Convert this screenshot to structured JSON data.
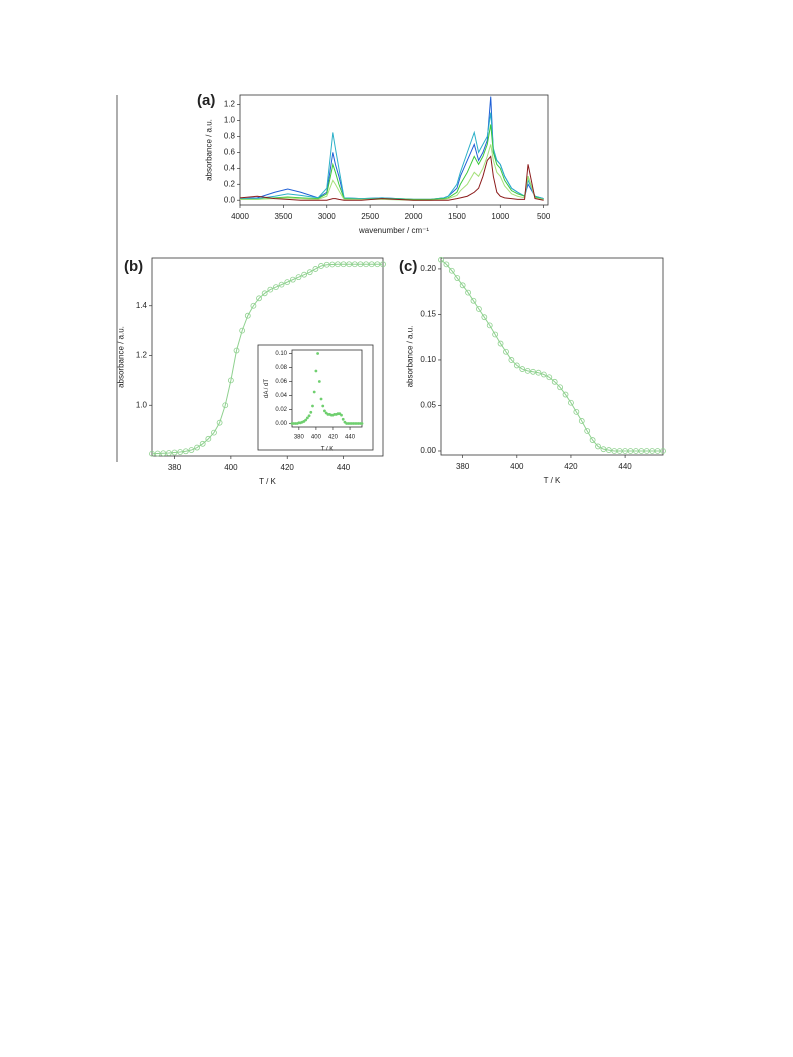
{
  "chart_data": [
    {
      "type": "line",
      "panel_label": "(a)",
      "xlabel": "wavenumber / cm⁻¹",
      "ylabel": "absorbance / a.u.",
      "xlim": [
        4000,
        450
      ],
      "ylim": [
        -0.06,
        1.32
      ],
      "xticks": [
        4000,
        3500,
        3000,
        2500,
        2000,
        1500,
        1000,
        500
      ],
      "yticks": [
        {
          "value": 0,
          "label": "0.0"
        },
        0.2,
        0.4,
        0.6,
        0.8,
        {
          "value": 1,
          "label": "1.0"
        },
        1.2
      ],
      "x": [
        4000,
        3800,
        3600,
        3450,
        3300,
        3100,
        3000,
        2930,
        2900,
        2860,
        2800,
        2600,
        2360,
        2000,
        1800,
        1650,
        1600,
        1500,
        1460,
        1380,
        1300,
        1250,
        1200,
        1150,
        1110,
        1080,
        1040,
        1000,
        950,
        870,
        800,
        720,
        680,
        600,
        500
      ],
      "series": [
        {
          "color": "#1f5fd6",
          "values": [
            0.02,
            0.03,
            0.1,
            0.14,
            0.1,
            0.03,
            0.1,
            0.6,
            0.45,
            0.3,
            0.03,
            0.02,
            0.03,
            0.01,
            0.01,
            0.03,
            0.05,
            0.15,
            0.3,
            0.5,
            0.7,
            0.5,
            0.6,
            0.75,
            1.3,
            0.6,
            0.5,
            0.45,
            0.3,
            0.15,
            0.1,
            0.05,
            0.2,
            0.05,
            0.02
          ]
        },
        {
          "color": "#2bb0c8",
          "values": [
            0.02,
            0.02,
            0.05,
            0.08,
            0.06,
            0.03,
            0.15,
            0.85,
            0.65,
            0.4,
            0.03,
            0.02,
            0.03,
            0.01,
            0.01,
            0.03,
            0.05,
            0.2,
            0.35,
            0.6,
            0.85,
            0.6,
            0.7,
            0.8,
            1.1,
            0.65,
            0.5,
            0.45,
            0.3,
            0.15,
            0.1,
            0.05,
            0.25,
            0.05,
            0.02
          ]
        },
        {
          "color": "#3cc83c",
          "values": [
            0.01,
            0.01,
            0.03,
            0.04,
            0.03,
            0.02,
            0.08,
            0.45,
            0.35,
            0.2,
            0.02,
            0.01,
            0.02,
            0.01,
            0.01,
            0.02,
            0.03,
            0.1,
            0.2,
            0.35,
            0.55,
            0.45,
            0.55,
            0.7,
            0.95,
            0.6,
            0.45,
            0.4,
            0.25,
            0.12,
            0.08,
            0.05,
            0.3,
            0.04,
            0.01
          ]
        },
        {
          "color": "#a6e07a",
          "values": [
            0.01,
            0.01,
            0.02,
            0.03,
            0.02,
            0.01,
            0.05,
            0.25,
            0.2,
            0.12,
            0.01,
            0.01,
            0.01,
            0,
            0,
            0.01,
            0.02,
            0.06,
            0.12,
            0.2,
            0.35,
            0.3,
            0.4,
            0.55,
            0.7,
            0.5,
            0.35,
            0.3,
            0.18,
            0.08,
            0.05,
            0.03,
            0.3,
            0.03,
            0.01
          ]
        },
        {
          "color": "#8b1a1a",
          "values": [
            0.03,
            0.05,
            0.02,
            0.01,
            0,
            0,
            0,
            0.02,
            0.02,
            0.01,
            0,
            0,
            0.02,
            0,
            0,
            0,
            0,
            0.02,
            0.03,
            0.05,
            0.1,
            0.15,
            0.3,
            0.5,
            0.55,
            0.3,
            0.1,
            0.05,
            0.03,
            0.02,
            0.01,
            0.01,
            0.45,
            0.02,
            0
          ]
        }
      ]
    },
    {
      "type": "line",
      "markers": true,
      "panel_label": "(b)",
      "xlabel": "T / K",
      "ylabel": "absorbance / a.u.",
      "color": "#8fd18f",
      "xlim": [
        372,
        454
      ],
      "ylim": [
        0.796,
        1.592
      ],
      "xticks": [
        380,
        400,
        420,
        440
      ],
      "yticks": [
        {
          "value": 1,
          "label": "1.0"
        },
        1.2,
        1.4
      ],
      "x": [
        372,
        374,
        376,
        378,
        380,
        382,
        384,
        386,
        388,
        390,
        392,
        394,
        396,
        398,
        400,
        402,
        404,
        406,
        408,
        410,
        412,
        414,
        416,
        418,
        420,
        422,
        424,
        426,
        428,
        430,
        432,
        434,
        436,
        438,
        440,
        442,
        444,
        446,
        448,
        450,
        452,
        454
      ],
      "values": [
        0.805,
        0.806,
        0.807,
        0.808,
        0.81,
        0.812,
        0.815,
        0.82,
        0.83,
        0.845,
        0.865,
        0.89,
        0.93,
        1.0,
        1.1,
        1.22,
        1.3,
        1.36,
        1.4,
        1.43,
        1.45,
        1.465,
        1.475,
        1.485,
        1.495,
        1.505,
        1.515,
        1.525,
        1.535,
        1.548,
        1.56,
        1.565,
        1.566,
        1.567,
        1.567,
        1.567,
        1.567,
        1.567,
        1.567,
        1.567,
        1.567,
        1.567
      ]
    },
    {
      "type": "scatter",
      "xlabel": "T / K",
      "ylabel": "dA / dT",
      "color": "#6fcf6f",
      "xlim": [
        372,
        454
      ],
      "ylim": [
        -0.005,
        0.105
      ],
      "xticks": [
        380,
        400,
        420,
        440
      ],
      "yticks": [
        {
          "value": 0,
          "label": "0.00"
        },
        {
          "value": 0.02,
          "label": "0.02"
        },
        {
          "value": 0.04,
          "label": "0.04"
        },
        {
          "value": 0.06,
          "label": "0.06"
        },
        {
          "value": 0.08,
          "label": "0.08"
        },
        {
          "value": 0.1,
          "label": "0.10"
        }
      ],
      "x": [
        372,
        374,
        376,
        378,
        380,
        382,
        384,
        386,
        388,
        390,
        392,
        394,
        396,
        398,
        400,
        402,
        404,
        406,
        408,
        410,
        412,
        414,
        416,
        418,
        420,
        422,
        424,
        426,
        428,
        430,
        432,
        434,
        436,
        438,
        440,
        442,
        444,
        446,
        448,
        450,
        452,
        454
      ],
      "values": [
        0,
        0,
        0,
        0,
        0.001,
        0.001,
        0.002,
        0.003,
        0.005,
        0.008,
        0.011,
        0.016,
        0.025,
        0.045,
        0.075,
        0.1,
        0.06,
        0.035,
        0.025,
        0.018,
        0.015,
        0.013,
        0.013,
        0.012,
        0.012,
        0.013,
        0.013,
        0.014,
        0.014,
        0.012,
        0.006,
        0.002,
        0,
        0,
        0,
        0,
        0,
        0,
        0,
        0,
        0,
        0
      ]
    },
    {
      "type": "line",
      "markers": true,
      "panel_label": "(c)",
      "xlabel": "T / K",
      "ylabel": "absorbance / a.u.",
      "color": "#8fd18f",
      "xlim": [
        372,
        454
      ],
      "ylim": [
        -0.0044,
        0.212
      ],
      "xticks": [
        380,
        400,
        420,
        440
      ],
      "yticks": [
        {
          "value": 0,
          "label": "0.00"
        },
        {
          "value": 0.05,
          "label": "0.05"
        },
        {
          "value": 0.1,
          "label": "0.10"
        },
        {
          "value": 0.15,
          "label": "0.15"
        },
        {
          "value": 0.2,
          "label": "0.20"
        }
      ],
      "x": [
        372,
        374,
        376,
        378,
        380,
        382,
        384,
        386,
        388,
        390,
        392,
        394,
        396,
        398,
        400,
        402,
        404,
        406,
        408,
        410,
        412,
        414,
        416,
        418,
        420,
        422,
        424,
        426,
        428,
        430,
        432,
        434,
        436,
        438,
        440,
        442,
        444,
        446,
        448,
        450,
        452,
        454
      ],
      "values": [
        0.21,
        0.205,
        0.198,
        0.19,
        0.182,
        0.174,
        0.165,
        0.156,
        0.147,
        0.138,
        0.128,
        0.118,
        0.109,
        0.1,
        0.094,
        0.09,
        0.088,
        0.087,
        0.086,
        0.084,
        0.081,
        0.076,
        0.07,
        0.062,
        0.053,
        0.043,
        0.033,
        0.022,
        0.012,
        0.005,
        0.002,
        0.001,
        0,
        0,
        0,
        0,
        0,
        0,
        0,
        0,
        0,
        0
      ]
    }
  ]
}
